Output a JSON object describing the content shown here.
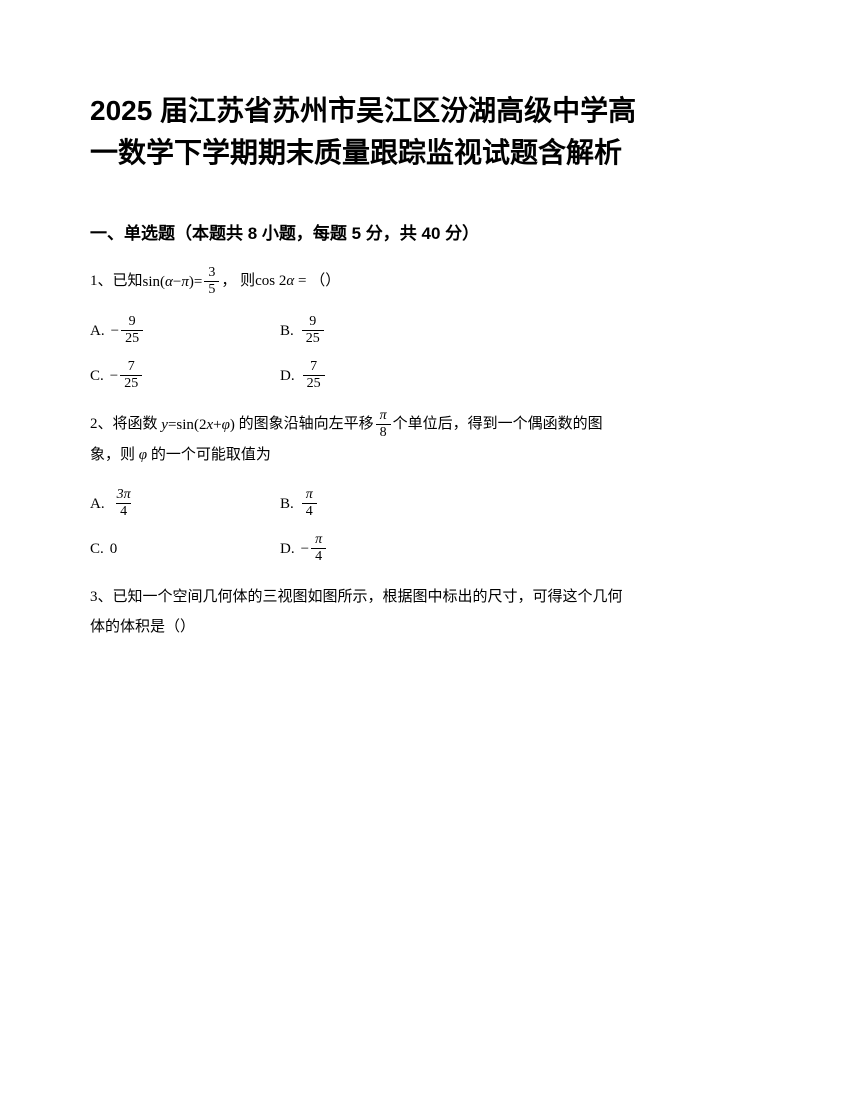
{
  "title_line1": "2025 届江苏省苏州市吴江区汾湖高级中学高",
  "title_line2": "一数学下学期期末质量跟踪监视试题含解析",
  "section_heading": "一、单选题（本题共 8 小题，每题 5 分，共 40 分）",
  "q1": {
    "number": "1、",
    "text_pre": "已知",
    "sin_expr": "sin",
    "paren_l": "(",
    "alpha": "α",
    "minus": " − ",
    "pi": "π",
    "paren_r": ")",
    "eq": " = ",
    "frac_num": "3",
    "frac_den": "5",
    "text_mid": "， 则",
    "cos_expr": "cos 2",
    "alpha2": "α",
    "eq2": " = （）",
    "opt_a_label": "A.",
    "opt_a_neg": "−",
    "opt_a_num": "9",
    "opt_a_den": "25",
    "opt_b_label": "B.",
    "opt_b_num": "9",
    "opt_b_den": "25",
    "opt_c_label": "C.",
    "opt_c_neg": "−",
    "opt_c_num": "7",
    "opt_c_den": "25",
    "opt_d_label": "D.",
    "opt_d_num": "7",
    "opt_d_den": "25"
  },
  "q2": {
    "number": "2、",
    "text_pre": "将函数 ",
    "y": "y",
    "eq": " = ",
    "sin": "sin",
    "paren_l": "(",
    "two_x": "2",
    "x": "x",
    "plus": " + ",
    "phi": "φ",
    "paren_r": ")",
    "text_mid1": " 的图象沿轴向左平移",
    "shift_num": "π",
    "shift_den": "8",
    "text_mid2": "个单位后，得到一个偶函数的图",
    "text_line2_pre": "象，则 ",
    "phi2": "φ",
    "text_line2_post": " 的一个可能取值为",
    "opt_a_label": "A.",
    "opt_a_num": "3π",
    "opt_a_den": "4",
    "opt_b_label": "B.",
    "opt_b_num": "π",
    "opt_b_den": "4",
    "opt_c_label": "C.",
    "opt_c_val": "0",
    "opt_d_label": "D.",
    "opt_d_neg": "−",
    "opt_d_num": "π",
    "opt_d_den": "4"
  },
  "q3": {
    "number": "3、",
    "text_line1": "已知一个空间几何体的三视图如图所示，根据图中标出的尺寸，可得这个几何",
    "text_line2": "体的体积是（）"
  },
  "colors": {
    "text": "#000000",
    "background": "#ffffff"
  },
  "fonts": {
    "title_size": 28,
    "heading_size": 17,
    "body_size": 15,
    "fraction_size": 14
  }
}
